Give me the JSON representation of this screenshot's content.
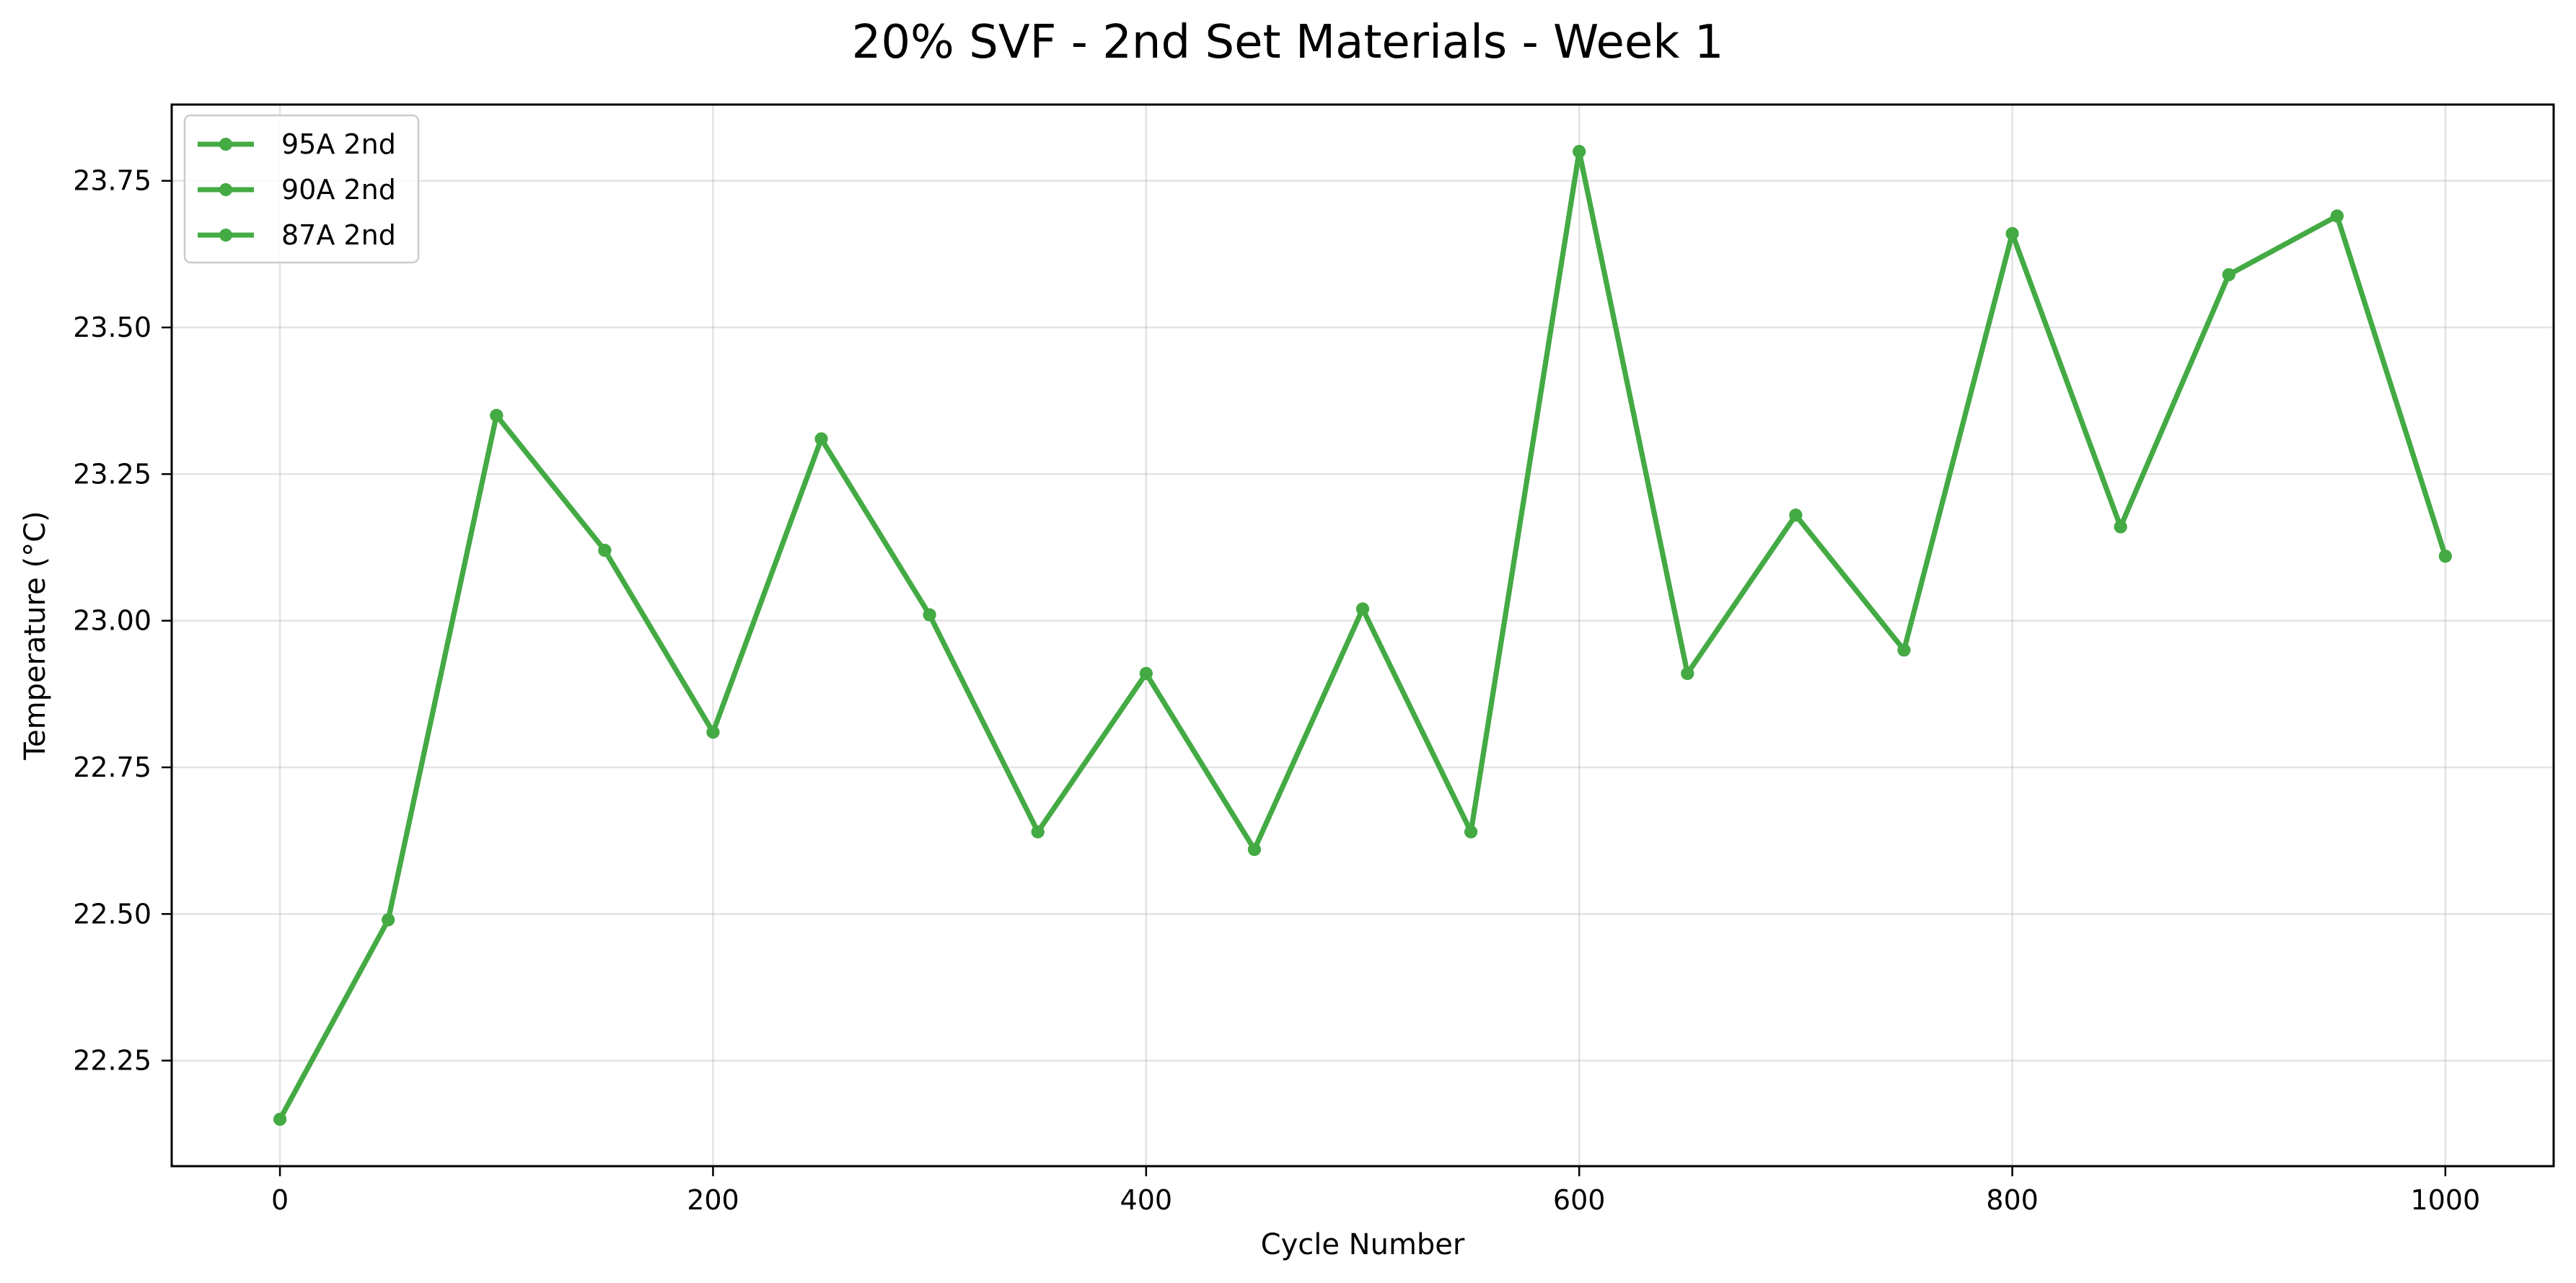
{
  "chart_data": {
    "type": "line",
    "title": "20% SVF - 2nd Set Materials - Week 1",
    "xlabel": "Cycle Number",
    "ylabel": "Temperature (°C)",
    "xlim": [
      -50,
      1050
    ],
    "ylim": [
      22.07,
      23.88
    ],
    "x_ticks": [
      0,
      200,
      400,
      600,
      800,
      1000
    ],
    "x_tick_labels": [
      "0",
      "200",
      "400",
      "600",
      "800",
      "1000"
    ],
    "y_ticks": [
      22.25,
      22.5,
      22.75,
      23.0,
      23.25,
      23.5,
      23.75
    ],
    "y_tick_labels": [
      "22.25",
      "22.50",
      "22.75",
      "23.00",
      "23.25",
      "23.50",
      "23.75"
    ],
    "grid": true,
    "legend_position": "top-left",
    "x": [
      0,
      50,
      100,
      150,
      200,
      250,
      300,
      350,
      400,
      450,
      500,
      550,
      600,
      650,
      700,
      750,
      800,
      850,
      900,
      950,
      1000
    ],
    "series": [
      {
        "name": "95A 2nd",
        "color": "#44aa44",
        "values": [
          22.15,
          22.49,
          23.35,
          23.12,
          22.81,
          23.31,
          23.01,
          22.64,
          22.91,
          22.61,
          23.02,
          22.64,
          23.8,
          22.91,
          23.18,
          22.95,
          23.66,
          23.16,
          23.59,
          23.69,
          23.11
        ]
      },
      {
        "name": "90A 2nd",
        "color": "#44aa44",
        "values": [
          22.15,
          22.49,
          23.35,
          23.12,
          22.81,
          23.31,
          23.01,
          22.64,
          22.91,
          22.61,
          23.02,
          22.64,
          23.8,
          22.91,
          23.18,
          22.95,
          23.66,
          23.16,
          23.59,
          23.69,
          23.11
        ]
      },
      {
        "name": "87A 2nd",
        "color": "#44aa44",
        "values": [
          22.15,
          22.49,
          23.35,
          23.12,
          22.81,
          23.31,
          23.01,
          22.64,
          22.91,
          22.61,
          23.02,
          22.64,
          23.8,
          22.91,
          23.18,
          22.95,
          23.66,
          23.16,
          23.59,
          23.69,
          23.11
        ]
      }
    ]
  }
}
